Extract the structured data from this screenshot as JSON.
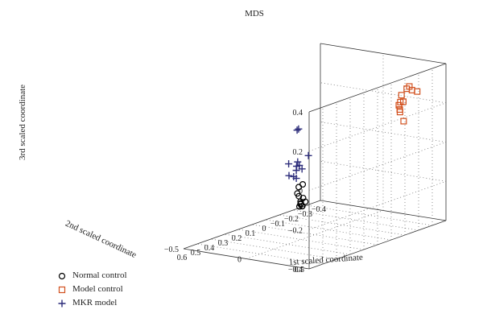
{
  "chart_data": {
    "type": "scatter",
    "title": "MDS",
    "x_axis": {
      "label": "1st scaled coordinate",
      "ticks": [
        "0.6",
        "0.5",
        "0.4",
        "0.3",
        "0.2",
        "0.1",
        "0",
        "−0.1",
        "−0.2",
        "−0.3",
        "−0.4"
      ]
    },
    "y_axis": {
      "label": "2nd scaled coordinate",
      "ticks": [
        "0.5",
        "0",
        "−0.5"
      ]
    },
    "z_axis": {
      "label": "3rd scaled coordinate",
      "ticks": [
        "0.4",
        "0.2",
        "0",
        "−0.2",
        "−0.4"
      ],
      "zlim": [
        -0.4,
        0.4
      ]
    },
    "grid": true,
    "legend_position": "bottom-left",
    "series": [
      {
        "name": "Normal control",
        "marker": "circle",
        "color": "#000000",
        "points": [
          [
            -0.15,
            -0.4,
            -0.26
          ],
          [
            -0.2,
            -0.42,
            -0.33
          ],
          [
            -0.22,
            -0.45,
            -0.38
          ],
          [
            -0.18,
            -0.38,
            -0.34
          ],
          [
            -0.25,
            -0.48,
            -0.39
          ],
          [
            -0.16,
            -0.41,
            -0.31
          ],
          [
            -0.19,
            -0.43,
            -0.36
          ],
          [
            -0.21,
            -0.46,
            -0.38
          ],
          [
            -0.17,
            -0.39,
            -0.25
          ],
          [
            -0.23,
            -0.47,
            -0.37
          ],
          [
            -0.2,
            -0.44,
            -0.35
          ],
          [
            -0.14,
            -0.4,
            -0.29
          ]
        ]
      },
      {
        "name": "Model control",
        "marker": "square",
        "color": "#d2501e",
        "points": [
          [
            -0.2,
            0.35,
            0.2
          ],
          [
            -0.25,
            0.3,
            0.22
          ],
          [
            -0.18,
            0.4,
            0.25
          ],
          [
            -0.22,
            0.33,
            0.18
          ],
          [
            -0.28,
            0.36,
            0.28
          ],
          [
            -0.24,
            0.32,
            0.26
          ],
          [
            -0.3,
            0.38,
            0.27
          ],
          [
            -0.26,
            0.34,
            0.29
          ],
          [
            -0.21,
            0.37,
            0.14
          ],
          [
            -0.23,
            0.31,
            0.21
          ],
          [
            -0.27,
            0.35,
            0.3
          ]
        ]
      },
      {
        "name": "MKR model",
        "marker": "plus",
        "color": "#2c2c7a",
        "points": [
          [
            0.5,
            0.3,
            0.1
          ],
          [
            0.45,
            0.28,
            0.05
          ],
          [
            0.38,
            0.1,
            -0.02
          ],
          [
            0.52,
            0.25,
            0.09
          ],
          [
            0.4,
            0.18,
            0.02
          ],
          [
            0.33,
            0.2,
            0.08
          ],
          [
            0.48,
            0.27,
            0.07
          ],
          [
            0.3,
            0.05,
            -0.05
          ],
          [
            0.35,
            0.15,
            0.03
          ],
          [
            0.42,
            0.22,
            0.24
          ],
          [
            0.44,
            0.23,
            0.24
          ],
          [
            0.29,
            0.06,
            -0.06
          ]
        ]
      }
    ]
  }
}
